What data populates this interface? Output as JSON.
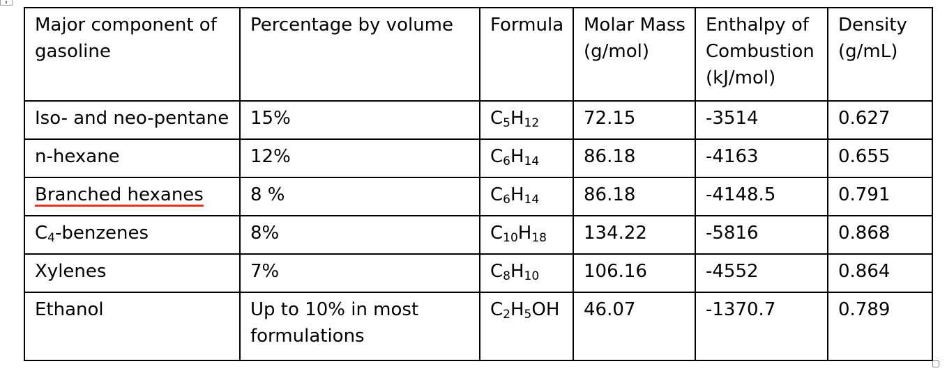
{
  "headers": [
    "Major component of gasoline",
    "Percentage by volume",
    "Formula",
    "Molar Mass (g/mol)",
    "Enthalpy of Combustion (kJ/mol)",
    "Density (g/mL)"
  ],
  "rows": [
    {
      "component": "Iso- and neo-pentane",
      "percentage": "15%",
      "formula": [
        "C",
        "5",
        "H",
        "12"
      ],
      "molar_mass": "72.15",
      "enthalpy": "-3514",
      "density": "0.627"
    },
    {
      "component": "n-hexane",
      "percentage": "12%",
      "formula": [
        "C",
        "6",
        "H",
        "14"
      ],
      "molar_mass": "86.18",
      "enthalpy": "-4163",
      "density": "0.655"
    },
    {
      "component": "Branched hexanes",
      "percentage": "8 %",
      "formula": [
        "C",
        "6",
        "H",
        "14"
      ],
      "molar_mass": "86.18",
      "enthalpy": "-4148.5",
      "density": "0.791"
    },
    {
      "component": [
        "C",
        "4",
        "-benzenes"
      ],
      "percentage": "8%",
      "formula": [
        "C",
        "10",
        "H",
        "18"
      ],
      "molar_mass": "134.22",
      "enthalpy": "-5816",
      "density": "0.868"
    },
    {
      "component": "Xylenes",
      "percentage": "7%",
      "formula": [
        "C",
        "8",
        "H",
        "10"
      ],
      "molar_mass": "106.16",
      "enthalpy": "-4552",
      "density": "0.864"
    },
    {
      "component": "Ethanol",
      "percentage": "Up to 10% in most formulations",
      "formula": [
        "C",
        "2",
        "H",
        "5",
        "OH"
      ],
      "molar_mass": "46.07",
      "enthalpy": "-1370.7",
      "density": "0.789"
    }
  ],
  "spellcheck_flagged_row": 2,
  "colors": {
    "border": "#000000",
    "spellcheck_underline": "#e0321e",
    "handle": "#8a8a8a"
  }
}
